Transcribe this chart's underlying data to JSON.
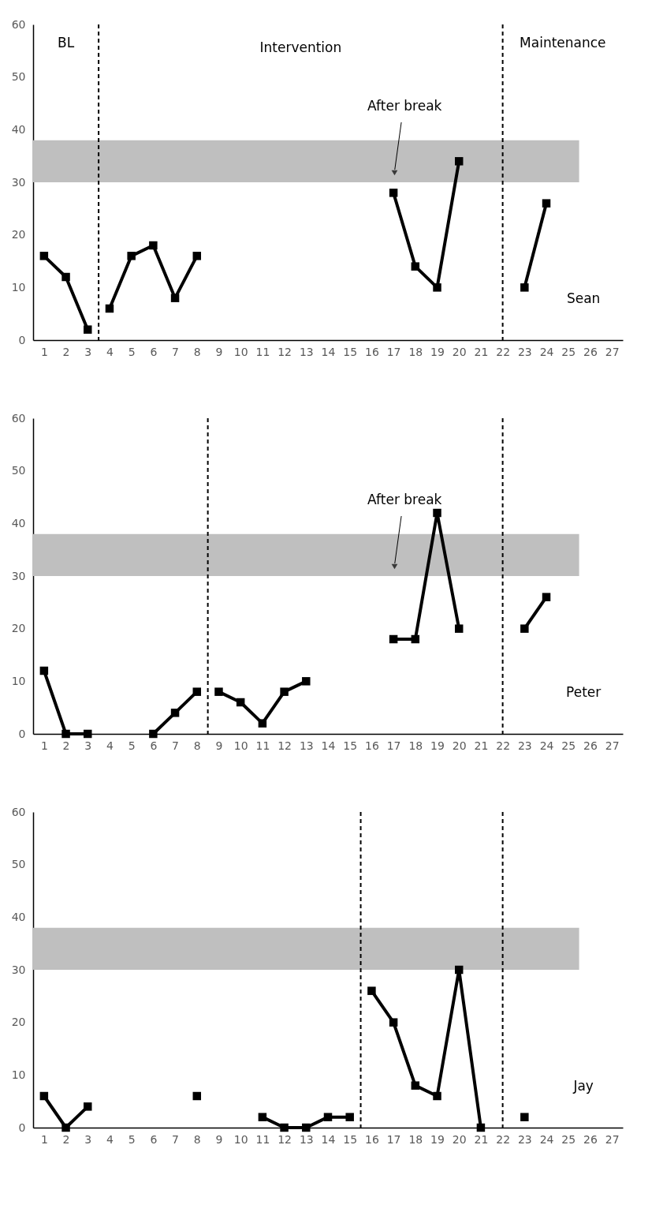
{
  "chart_data": [
    {
      "type": "line",
      "xlim": [
        0.5,
        27.5
      ],
      "xticks": [
        1,
        2,
        3,
        4,
        5,
        6,
        7,
        8,
        9,
        10,
        11,
        12,
        13,
        14,
        15,
        16,
        17,
        18,
        19,
        20,
        21,
        22,
        23,
        24,
        25,
        26,
        27
      ],
      "ylim": [
        0,
        60
      ],
      "yticks": [
        0,
        10,
        20,
        30,
        40,
        50,
        60
      ],
      "grid": false,
      "marker": "square",
      "line_style": "solid",
      "series": [
        {
          "color": "#000000",
          "x": [
            1,
            2,
            3
          ],
          "values": [
            16,
            12,
            2
          ]
        },
        {
          "color": "#000000",
          "x": [
            4,
            5,
            6,
            7,
            8,
            9,
            10,
            11,
            12,
            13,
            14,
            15,
            16,
            17,
            18,
            19,
            20
          ],
          "values": [
            6,
            16,
            18,
            8,
            16,
            null,
            null,
            null,
            null,
            null,
            null,
            null,
            null,
            28,
            14,
            10,
            34
          ]
        },
        {
          "color": "#000000",
          "x": [
            23,
            24
          ],
          "values": [
            10,
            26
          ]
        }
      ],
      "bands": [
        {
          "axis": "y",
          "from": 30,
          "to": 38,
          "color": "#bfbfbf"
        }
      ],
      "ref_lines": [
        {
          "axis": "x",
          "value": 3.5,
          "line_style": "dashed"
        },
        {
          "axis": "x",
          "value": 22,
          "line_style": "dashed"
        }
      ],
      "annotations": [
        "BL",
        "Intervention",
        "Maintenance",
        "After break",
        "Sean"
      ]
    },
    {
      "type": "line",
      "xlim": [
        0.5,
        27.5
      ],
      "xticks": [
        1,
        2,
        3,
        4,
        5,
        6,
        7,
        8,
        9,
        10,
        11,
        12,
        13,
        14,
        15,
        16,
        17,
        18,
        19,
        20,
        21,
        22,
        23,
        24,
        25,
        26,
        27
      ],
      "ylim": [
        0,
        60
      ],
      "yticks": [
        0,
        10,
        20,
        30,
        40,
        50,
        60
      ],
      "grid": false,
      "marker": "square",
      "line_style": "solid",
      "series": [
        {
          "color": "#000000",
          "x": [
            1,
            2,
            3,
            4,
            5,
            6,
            7,
            8
          ],
          "values": [
            12,
            0,
            0,
            null,
            null,
            0,
            4,
            8
          ]
        },
        {
          "color": "#000000",
          "x": [
            9,
            10,
            11,
            12,
            13,
            14,
            15,
            16,
            17,
            18,
            19,
            20
          ],
          "values": [
            8,
            6,
            2,
            8,
            10,
            null,
            null,
            null,
            18,
            18,
            42,
            20
          ]
        },
        {
          "color": "#000000",
          "x": [
            23,
            24
          ],
          "values": [
            20,
            26
          ]
        }
      ],
      "bands": [
        {
          "axis": "y",
          "from": 30,
          "to": 38,
          "color": "#bfbfbf"
        }
      ],
      "ref_lines": [
        {
          "axis": "x",
          "value": 8.5,
          "line_style": "dashed"
        },
        {
          "axis": "x",
          "value": 22,
          "line_style": "dashed"
        }
      ],
      "annotations": [
        "After break",
        "Peter"
      ]
    },
    {
      "type": "line",
      "xlim": [
        0.5,
        27.5
      ],
      "xticks": [
        1,
        2,
        3,
        4,
        5,
        6,
        7,
        8,
        9,
        10,
        11,
        12,
        13,
        14,
        15,
        16,
        17,
        18,
        19,
        20,
        21,
        22,
        23,
        24,
        25,
        26,
        27
      ],
      "ylim": [
        0,
        60
      ],
      "yticks": [
        0,
        10,
        20,
        30,
        40,
        50,
        60
      ],
      "grid": false,
      "marker": "square",
      "line_style": "solid",
      "series": [
        {
          "color": "#000000",
          "x": [
            1,
            2,
            3,
            4,
            5,
            6,
            7,
            8,
            9,
            10,
            11,
            12,
            13,
            14,
            15
          ],
          "values": [
            6,
            0,
            4,
            null,
            null,
            null,
            null,
            6,
            null,
            null,
            2,
            0,
            0,
            2,
            2
          ]
        },
        {
          "color": "#000000",
          "x": [
            16,
            17,
            18,
            19,
            20,
            21
          ],
          "values": [
            26,
            20,
            8,
            6,
            30,
            0
          ]
        },
        {
          "color": "#000000",
          "x": [
            23
          ],
          "values": [
            2
          ]
        }
      ],
      "bands": [
        {
          "axis": "y",
          "from": 30,
          "to": 38,
          "color": "#bfbfbf"
        }
      ],
      "ref_lines": [
        {
          "axis": "x",
          "value": 15.5,
          "line_style": "dashed"
        },
        {
          "axis": "x",
          "value": 22,
          "line_style": "dashed"
        }
      ],
      "annotations": [
        "Jay"
      ]
    }
  ]
}
